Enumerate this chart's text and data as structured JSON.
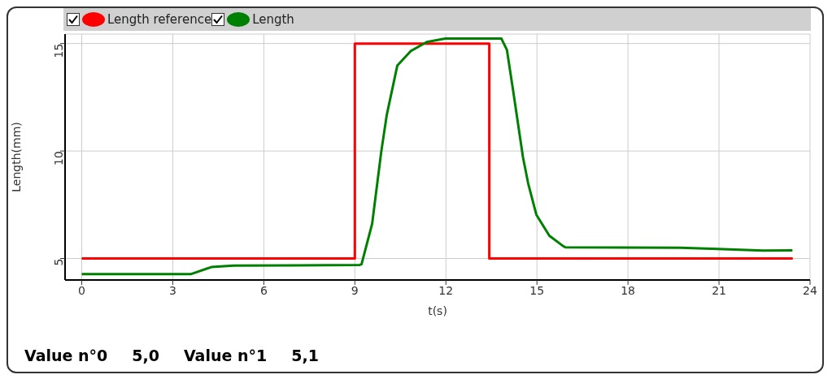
{
  "chart_data": {
    "type": "line",
    "xlabel": "t(s)",
    "ylabel": "Length(mm)",
    "xlim": [
      -0.55,
      24
    ],
    "ylim": [
      4,
      15.44
    ],
    "xticks": [
      0,
      3,
      6,
      9,
      12,
      15,
      18,
      21,
      24
    ],
    "yticks": [
      5,
      10,
      15
    ],
    "grid": true,
    "legend": "top",
    "marker": "none",
    "line_style": "solid",
    "series": [
      {
        "name": "Length reference",
        "type": "step",
        "color": "#ff0000",
        "x": [
          0,
          9,
          13.43,
          23.43
        ],
        "values": [
          5,
          15,
          5,
          5
        ]
      },
      {
        "name": "Length",
        "color": "#008000",
        "x": [
          0,
          2,
          3.59,
          4.27,
          5.0,
          7,
          9.16,
          9.22,
          9.57,
          9.87,
          10.05,
          10.4,
          10.84,
          11.37,
          11.98,
          13.83,
          14.01,
          14.22,
          14.54,
          14.71,
          14.98,
          15.41,
          15.86,
          15.94,
          19.73,
          20.95,
          22.45,
          23.42
        ],
        "values": [
          4.27,
          4.27,
          4.27,
          4.6,
          4.67,
          4.68,
          4.7,
          4.73,
          6.62,
          9.97,
          11.67,
          13.98,
          14.65,
          15.07,
          15.23,
          15.23,
          14.71,
          12.77,
          9.71,
          8.5,
          7.04,
          6.06,
          5.58,
          5.52,
          5.5,
          5.44,
          5.37,
          5.38
        ]
      }
    ],
    "annotations": [
      "Value n°0",
      "5,0",
      "Value n°1",
      "5,1"
    ]
  }
}
